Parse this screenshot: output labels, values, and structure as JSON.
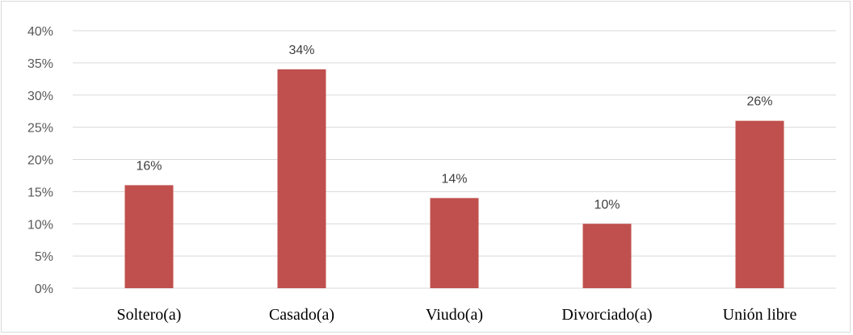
{
  "chart_data": {
    "type": "bar",
    "title": "",
    "xlabel": "",
    "ylabel": "",
    "categories": [
      "Soltero(a)",
      "Casado(a)",
      "Viudo(a)",
      "Divorciado(a)",
      "Unión libre"
    ],
    "values": [
      16,
      34,
      14,
      10,
      26
    ],
    "data_labels": [
      "16%",
      "34%",
      "14%",
      "10%",
      "26%"
    ],
    "ylim": [
      0,
      40
    ],
    "y_ticks": [
      0,
      5,
      10,
      15,
      20,
      25,
      30,
      35,
      40
    ],
    "y_tick_labels": [
      "0%",
      "5%",
      "10%",
      "15%",
      "20%",
      "25%",
      "30%",
      "35%",
      "40%"
    ],
    "grid": true,
    "legend": "none",
    "colors": {
      "bar": "#c0504d",
      "grid": "#d9d9d9",
      "frame": "#d9d9d9"
    }
  }
}
